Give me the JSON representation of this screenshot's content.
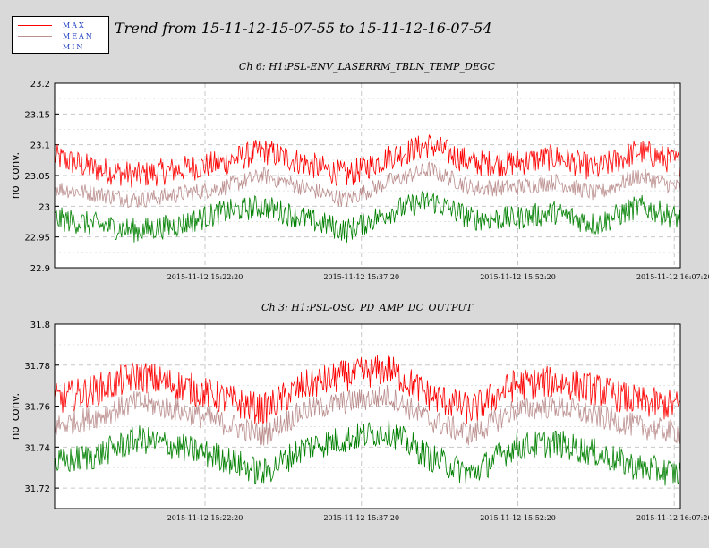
{
  "legend": {
    "items": [
      {
        "label": "MAX",
        "color": "#ff0000"
      },
      {
        "label": "MEAN",
        "color": "#bc8f8f"
      },
      {
        "label": "MIN",
        "color": "#008000"
      }
    ]
  },
  "title": "Trend from 15-11-12-15-07-55 to 15-11-12-16-07-54",
  "chart_data": [
    {
      "type": "line",
      "title": "Ch 6: H1:PSL-ENV_LASERRM_TBLN_TEMP_DEGC",
      "ylabel": "no_conv.",
      "ylim": [
        22.9,
        23.2
      ],
      "yticks": [
        "22.9",
        "22.95",
        "23",
        "23.05",
        "23.1",
        "23.15",
        "23.2"
      ],
      "xlim": [
        0,
        60
      ],
      "xticks": [
        {
          "label": "2015-11-12 15:22:20",
          "minute": 14.42
        },
        {
          "label": "2015-11-12 15:37:20",
          "minute": 29.42
        },
        {
          "label": "2015-11-12 15:52:20",
          "minute": 44.42
        },
        {
          "label": "2015-11-12 16:07:20",
          "minute": 59.42
        }
      ],
      "grid": true,
      "series": [
        {
          "name": "MAX",
          "color": "#ff0000",
          "x": [
            0,
            4,
            8,
            12,
            16,
            20,
            24,
            28,
            32,
            36,
            40,
            44,
            48,
            52,
            56,
            60
          ],
          "y": [
            23.08,
            23.06,
            23.05,
            23.06,
            23.07,
            23.09,
            23.07,
            23.05,
            23.08,
            23.1,
            23.07,
            23.07,
            23.08,
            23.06,
            23.09,
            23.07
          ],
          "noise": 0.022
        },
        {
          "name": "MEAN",
          "color": "#bc8f8f",
          "x": [
            0,
            4,
            8,
            12,
            16,
            20,
            24,
            28,
            32,
            36,
            40,
            44,
            48,
            52,
            56,
            60
          ],
          "y": [
            23.03,
            23.02,
            23.01,
            23.02,
            23.03,
            23.05,
            23.03,
            23.01,
            23.04,
            23.06,
            23.03,
            23.03,
            23.04,
            23.02,
            23.05,
            23.03
          ],
          "noise": 0.014
        },
        {
          "name": "MIN",
          "color": "#008000",
          "x": [
            0,
            4,
            8,
            12,
            16,
            20,
            24,
            28,
            32,
            36,
            40,
            44,
            48,
            52,
            56,
            60
          ],
          "y": [
            22.98,
            22.97,
            22.96,
            22.97,
            22.99,
            23.0,
            22.98,
            22.96,
            22.99,
            23.01,
            22.98,
            22.98,
            22.99,
            22.97,
            23.0,
            22.98
          ],
          "noise": 0.02
        }
      ]
    },
    {
      "type": "line",
      "title": "Ch 3: H1:PSL-OSC_PD_AMP_DC_OUTPUT",
      "ylabel": "no_conv.",
      "ylim": [
        31.71,
        31.8
      ],
      "yticks": [
        "31.72",
        "31.74",
        "31.76",
        "31.78",
        "31.8"
      ],
      "xlim": [
        0,
        60
      ],
      "xticks": [
        {
          "label": "2015-11-12 15:22:20",
          "minute": 14.42
        },
        {
          "label": "2015-11-12 15:37:20",
          "minute": 29.42
        },
        {
          "label": "2015-11-12 15:52:20",
          "minute": 44.42
        },
        {
          "label": "2015-11-12 16:07:20",
          "minute": 59.42
        }
      ],
      "grid": true,
      "series": [
        {
          "name": "MAX",
          "color": "#ff0000",
          "x": [
            0,
            4,
            8,
            12,
            16,
            20,
            24,
            28,
            32,
            36,
            40,
            44,
            48,
            52,
            56,
            60
          ],
          "y": [
            31.763,
            31.768,
            31.775,
            31.77,
            31.764,
            31.758,
            31.77,
            31.775,
            31.778,
            31.765,
            31.758,
            31.77,
            31.772,
            31.768,
            31.762,
            31.76
          ],
          "noise": 0.008
        },
        {
          "name": "MEAN",
          "color": "#bc8f8f",
          "x": [
            0,
            4,
            8,
            12,
            16,
            20,
            24,
            28,
            32,
            36,
            40,
            44,
            48,
            52,
            56,
            60
          ],
          "y": [
            31.75,
            31.755,
            31.762,
            31.758,
            31.752,
            31.746,
            31.758,
            31.762,
            31.765,
            31.753,
            31.746,
            31.758,
            31.76,
            31.755,
            31.75,
            31.747
          ],
          "noise": 0.006
        },
        {
          "name": "MIN",
          "color": "#008000",
          "x": [
            0,
            4,
            8,
            12,
            16,
            20,
            24,
            28,
            32,
            36,
            40,
            44,
            48,
            52,
            56,
            60
          ],
          "y": [
            31.732,
            31.736,
            31.744,
            31.74,
            31.735,
            31.727,
            31.74,
            31.744,
            31.748,
            31.735,
            31.727,
            31.74,
            31.742,
            31.737,
            31.73,
            31.727
          ],
          "noise": 0.007
        }
      ]
    }
  ]
}
